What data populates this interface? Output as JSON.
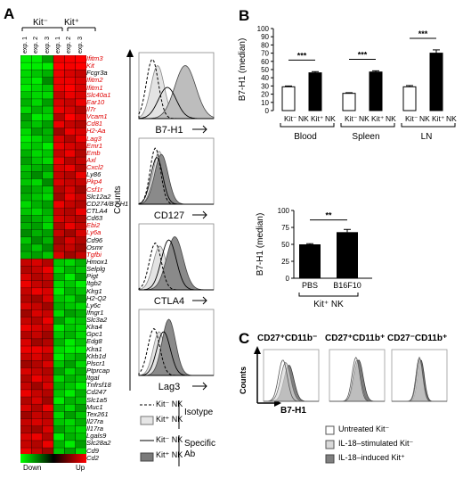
{
  "panel_a": {
    "letter": "A",
    "group_neg": "Kit⁻",
    "group_pos": "Kit⁺",
    "experiments": [
      "exp. 1",
      "exp. 2",
      "exp. 3",
      "exp. 1",
      "exp. 2",
      "exp. 3"
    ],
    "genes": [
      {
        "name": "Ifitm3",
        "red": true
      },
      {
        "name": "Kit",
        "red": true
      },
      {
        "name": "Fcgr3a",
        "red": false
      },
      {
        "name": "Ifitm2",
        "red": true
      },
      {
        "name": "Ifitm1",
        "red": true
      },
      {
        "name": "Slc40a1",
        "red": true
      },
      {
        "name": "Ear10",
        "red": true
      },
      {
        "name": "Il7r",
        "red": true
      },
      {
        "name": "Vcam1",
        "red": true
      },
      {
        "name": "Cd81",
        "red": true
      },
      {
        "name": "H2-Aa",
        "red": true
      },
      {
        "name": "Lag3",
        "red": true
      },
      {
        "name": "Emr1",
        "red": true
      },
      {
        "name": "Emb",
        "red": true
      },
      {
        "name": "Axl",
        "red": true
      },
      {
        "name": "Cxcl2",
        "red": true
      },
      {
        "name": "Ly86",
        "red": false
      },
      {
        "name": "Pkp4",
        "red": true
      },
      {
        "name": "Csf1r",
        "red": true
      },
      {
        "name": "Slc12a2",
        "red": false
      },
      {
        "name": "CD274/B7-H1",
        "red": false
      },
      {
        "name": "CTLA4",
        "red": false
      },
      {
        "name": "Cd63",
        "red": false
      },
      {
        "name": "Ebi2",
        "red": true
      },
      {
        "name": "Ly6a",
        "red": true
      },
      {
        "name": "Cd96",
        "red": false
      },
      {
        "name": "Osmr",
        "red": false
      },
      {
        "name": "Tgfbi",
        "red": true
      },
      {
        "name": "Hmox1",
        "red": false
      },
      {
        "name": "Selplg",
        "red": false
      },
      {
        "name": "Pigt",
        "red": false
      },
      {
        "name": "Itgb2",
        "red": false
      },
      {
        "name": "Klrg1",
        "red": false
      },
      {
        "name": "H2-Q2",
        "red": false
      },
      {
        "name": "Ly6c",
        "red": false
      },
      {
        "name": "Ifngr1",
        "red": false
      },
      {
        "name": "Slc3a2",
        "red": false
      },
      {
        "name": "Klra4",
        "red": false
      },
      {
        "name": "Gpc1",
        "red": false
      },
      {
        "name": "Edg8",
        "red": false
      },
      {
        "name": "Klra1",
        "red": false
      },
      {
        "name": "Klrb1d",
        "red": false
      },
      {
        "name": "Plscr1",
        "red": false
      },
      {
        "name": "Ptprcap",
        "red": false
      },
      {
        "name": "Itgal",
        "red": false
      },
      {
        "name": "Tnfrsf18",
        "red": false
      },
      {
        "name": "Cd247",
        "red": false
      },
      {
        "name": "Slc1a5",
        "red": false
      },
      {
        "name": "Muc1",
        "red": false
      },
      {
        "name": "Tex261",
        "red": false
      },
      {
        "name": "Il27ra",
        "red": false
      },
      {
        "name": "Il17ra",
        "red": false
      },
      {
        "name": "Lgals9",
        "red": false
      },
      {
        "name": "Slc28a2",
        "red": false
      },
      {
        "name": "Cd9",
        "red": false
      },
      {
        "name": "Cd2",
        "red": false
      }
    ],
    "heatmap_levels": [
      [
        -0.9,
        -0.9,
        -0.5,
        0.9,
        0.95,
        1.0
      ],
      [
        -0.95,
        -0.9,
        -0.9,
        1.0,
        0.95,
        1.0
      ],
      [
        -0.8,
        -0.7,
        -0.6,
        0.9,
        0.8,
        0.7
      ],
      [
        -0.8,
        -0.9,
        -0.4,
        0.9,
        0.9,
        0.8
      ],
      [
        -0.9,
        -0.8,
        -0.7,
        0.9,
        1.0,
        0.8
      ],
      [
        -0.7,
        -0.8,
        -0.8,
        0.7,
        0.9,
        0.8
      ],
      [
        -0.6,
        -0.8,
        -0.5,
        0.8,
        0.7,
        0.9
      ],
      [
        -0.8,
        -0.6,
        -0.7,
        0.9,
        0.8,
        0.6
      ],
      [
        -0.5,
        -0.9,
        -0.8,
        0.6,
        1.0,
        0.8
      ],
      [
        -0.6,
        -0.7,
        -0.5,
        0.9,
        0.7,
        0.6
      ],
      [
        -0.8,
        -0.5,
        -0.6,
        0.5,
        0.9,
        0.8
      ],
      [
        -0.9,
        -0.8,
        -0.6,
        0.8,
        0.6,
        0.9
      ],
      [
        -0.8,
        -0.7,
        -0.9,
        0.9,
        0.8,
        0.7
      ],
      [
        -0.6,
        -0.8,
        -0.7,
        0.7,
        0.9,
        0.6
      ],
      [
        -0.5,
        -0.7,
        -0.8,
        0.9,
        0.6,
        0.7
      ],
      [
        -0.7,
        -0.6,
        -0.5,
        0.8,
        0.9,
        0.6
      ],
      [
        -0.6,
        -0.4,
        -0.7,
        0.7,
        0.6,
        0.9
      ],
      [
        -0.7,
        -0.8,
        -0.4,
        0.8,
        0.7,
        0.7
      ],
      [
        -0.5,
        -0.6,
        -0.7,
        0.6,
        0.8,
        0.5
      ],
      [
        -0.6,
        -0.7,
        -0.8,
        0.5,
        0.9,
        0.7
      ],
      [
        -0.8,
        -0.6,
        -0.5,
        0.9,
        0.7,
        0.6
      ],
      [
        -0.7,
        -0.8,
        -0.6,
        0.7,
        0.6,
        0.9
      ],
      [
        -0.5,
        -0.6,
        -0.7,
        0.8,
        0.7,
        0.6
      ],
      [
        -0.6,
        -0.5,
        -0.8,
        0.6,
        0.9,
        0.7
      ],
      [
        -0.4,
        -0.6,
        -0.5,
        0.7,
        0.5,
        0.8
      ],
      [
        -0.7,
        -0.4,
        -0.6,
        0.5,
        0.8,
        0.6
      ],
      [
        -0.5,
        -0.7,
        -0.4,
        0.6,
        0.7,
        0.5
      ],
      [
        -0.6,
        -0.5,
        -0.7,
        0.8,
        0.5,
        0.7
      ],
      [
        0.7,
        0.8,
        0.6,
        -0.7,
        -0.8,
        -0.6
      ],
      [
        0.6,
        0.7,
        0.9,
        -0.8,
        -0.6,
        -0.7
      ],
      [
        0.8,
        0.6,
        0.7,
        -0.6,
        -0.9,
        -0.5
      ],
      [
        0.9,
        0.7,
        0.6,
        -0.8,
        -0.7,
        -0.9
      ],
      [
        0.7,
        0.9,
        0.8,
        -0.9,
        -0.6,
        -0.7
      ],
      [
        0.6,
        0.5,
        0.8,
        -0.7,
        -0.8,
        -0.5
      ],
      [
        0.8,
        0.7,
        0.5,
        -0.6,
        -0.7,
        -0.8
      ],
      [
        0.5,
        0.8,
        0.7,
        -0.8,
        -0.5,
        -0.6
      ],
      [
        0.7,
        0.6,
        0.9,
        -0.5,
        -0.8,
        -0.7
      ],
      [
        0.9,
        0.8,
        0.7,
        -0.9,
        -0.7,
        -0.8
      ],
      [
        0.6,
        0.7,
        0.5,
        -0.7,
        -0.6,
        -0.8
      ],
      [
        0.8,
        0.5,
        0.6,
        -0.6,
        -0.9,
        -0.7
      ],
      [
        0.9,
        0.9,
        0.8,
        -0.8,
        -0.9,
        -0.9
      ],
      [
        0.7,
        0.8,
        0.6,
        -0.9,
        -0.7,
        -0.6
      ],
      [
        0.5,
        0.6,
        0.8,
        -0.7,
        -0.5,
        -0.8
      ],
      [
        0.8,
        0.7,
        0.6,
        -0.5,
        -0.8,
        -0.6
      ],
      [
        0.6,
        0.9,
        0.7,
        -0.8,
        -0.6,
        -0.7
      ],
      [
        0.7,
        0.5,
        0.8,
        -0.6,
        -0.7,
        -0.9
      ],
      [
        0.9,
        0.7,
        0.6,
        -0.7,
        -0.9,
        -0.6
      ],
      [
        0.6,
        0.8,
        0.5,
        -0.9,
        -0.6,
        -0.7
      ],
      [
        0.8,
        0.6,
        0.9,
        -0.6,
        -0.8,
        -0.5
      ],
      [
        0.5,
        0.7,
        0.6,
        -0.8,
        -0.5,
        -0.7
      ],
      [
        0.7,
        0.8,
        0.7,
        -0.7,
        -0.8,
        -0.6
      ],
      [
        0.6,
        0.5,
        0.8,
        -0.5,
        -0.7,
        -0.8
      ],
      [
        0.8,
        0.9,
        0.6,
        -0.9,
        -0.6,
        -0.7
      ],
      [
        0.7,
        0.6,
        0.9,
        -0.6,
        -0.9,
        -0.5
      ],
      [
        0.9,
        0.7,
        0.5,
        -0.7,
        -0.5,
        -0.8
      ],
      [
        0.6,
        0.8,
        0.7,
        -0.8,
        -0.7,
        -0.6
      ]
    ],
    "scale_down": "Down",
    "scale_up": "Up",
    "histograms": [
      {
        "label": "B7-H1"
      },
      {
        "label": "CD127"
      },
      {
        "label": "CTLA4"
      },
      {
        "label": "Lag3"
      }
    ],
    "counts_label": "Counts",
    "legend": {
      "isotype_neg": "Kit⁻ NK",
      "isotype_pos": "Kit⁺ NK",
      "isotype_label": "Isotype",
      "specific_neg": "Kit⁻ NK",
      "specific_pos": "Kit⁺ NK",
      "specific_label": "Specific Ab"
    }
  },
  "panel_b": {
    "letter": "B",
    "chart_top": {
      "ylabel": "B7-H1 (median)",
      "yticks": [
        0,
        10,
        20,
        30,
        40,
        50,
        60,
        70,
        80,
        90,
        100
      ],
      "groups": [
        {
          "name": "Blood",
          "kit_neg": "Kit⁻",
          "kit_pos": "Kit⁺",
          "nk": "NK",
          "neg": 29,
          "pos": 46,
          "neg_err": 1,
          "pos_err": 1.5,
          "sig": "***"
        },
        {
          "name": "Spleen",
          "kit_neg": "Kit⁻",
          "kit_pos": "Kit⁺",
          "nk": "NK",
          "neg": 21,
          "pos": 47,
          "neg_err": 0.8,
          "pos_err": 1.5,
          "sig": "***"
        },
        {
          "name": "LN",
          "kit_neg": "Kit⁻",
          "kit_pos": "Kit⁺",
          "nk": "NK",
          "neg": 29,
          "pos": 70,
          "neg_err": 1.5,
          "pos_err": 4,
          "sig": "***"
        }
      ]
    },
    "chart_bottom": {
      "ylabel": "B7-H1 (median)",
      "yticks": [
        0,
        25,
        50,
        75,
        100
      ],
      "categories": [
        "PBS",
        "B16F10"
      ],
      "values": [
        50,
        68
      ],
      "errors": [
        1,
        4
      ],
      "sig": "**",
      "xlabel": "Kit⁺ NK"
    }
  },
  "panel_c": {
    "letter": "C",
    "titles": [
      "CD27⁺CD11b⁻",
      "CD27⁺CD11b⁺",
      "CD27⁻CD11b⁺"
    ],
    "counts_label": "Counts",
    "x_label": "B7-H1",
    "legend": [
      "Untreated Kit⁻",
      "IL-18–stimulated Kit⁻",
      "IL-18–induced Kit⁺"
    ],
    "colors": {
      "untreated": "#ffffff",
      "stimulated": "#d9d9d9",
      "induced": "#7f7f7f"
    }
  }
}
